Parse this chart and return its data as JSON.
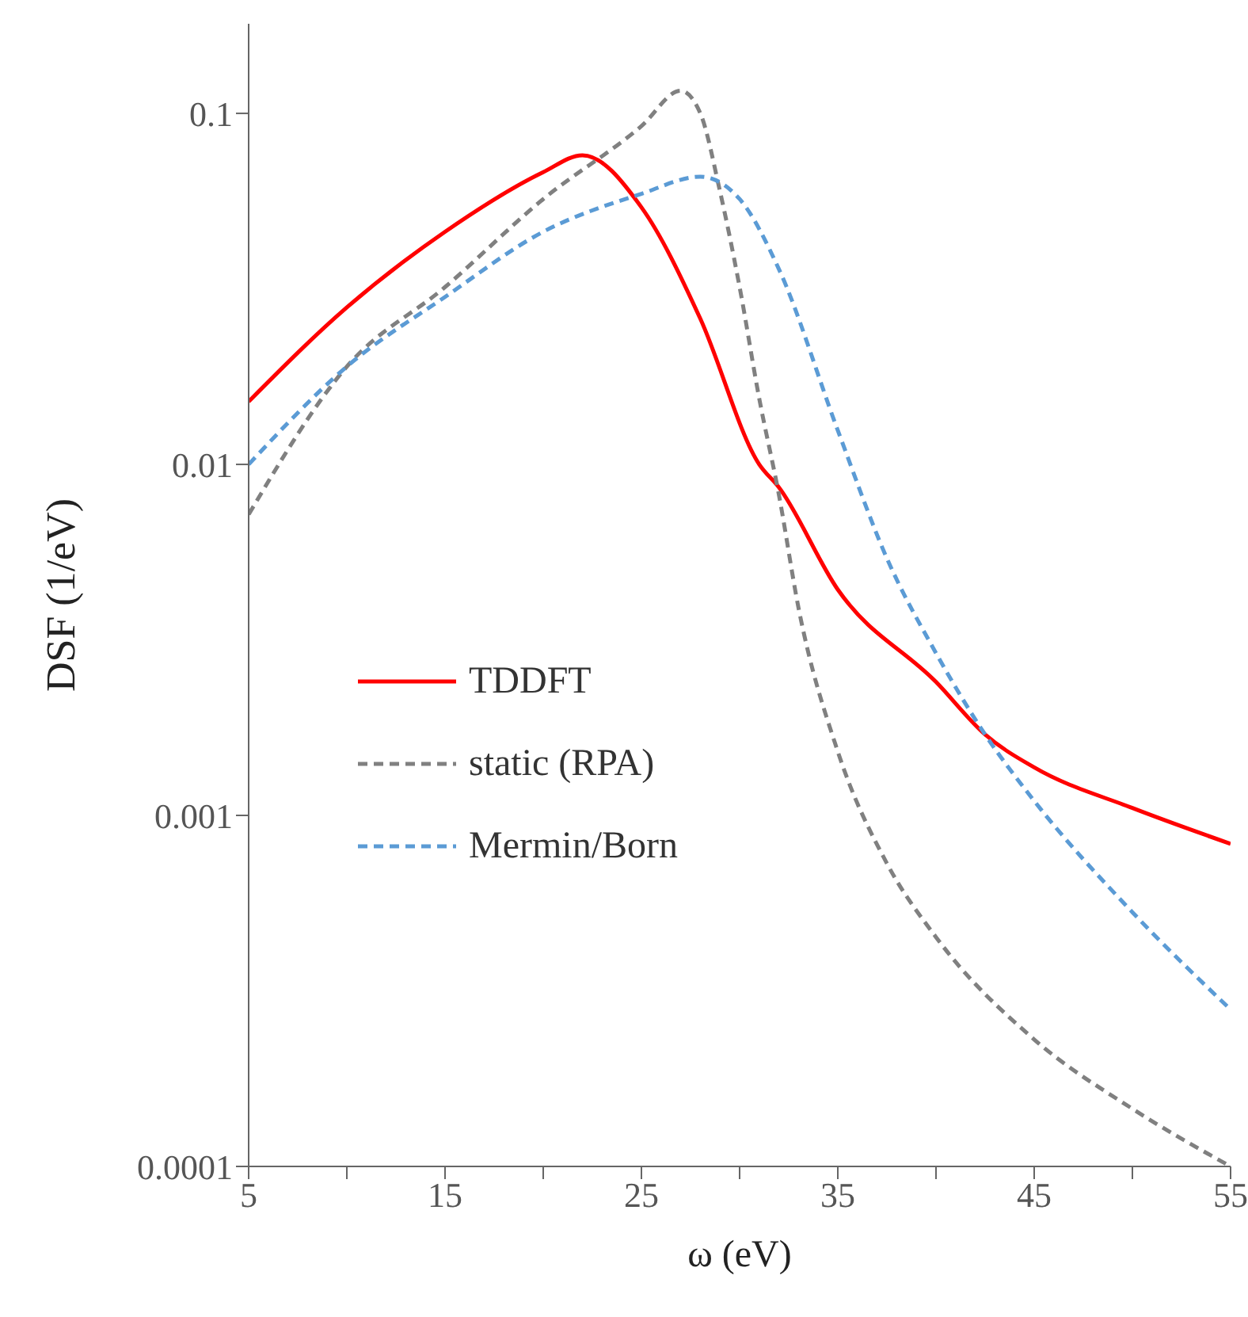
{
  "chart_data": {
    "type": "line",
    "xlabel": "ω (eV)",
    "ylabel": "DSF (1/eV)",
    "log": "y",
    "grid": false,
    "legend": "left",
    "xlim": [
      5,
      55
    ],
    "ylim": [
      0.0001,
      0.18
    ],
    "xticks": [
      5,
      {
        "value": 10,
        "label": null
      },
      15,
      {
        "value": 20,
        "label": null
      },
      25,
      {
        "value": 30,
        "label": null
      },
      35,
      {
        "value": 40,
        "label": null
      },
      45,
      {
        "value": 50,
        "label": null
      },
      55
    ],
    "yticks": [
      0.0001,
      0.001,
      0.01,
      0.1
    ],
    "series": [
      {
        "name": "TDDFT",
        "color": "#ff0000",
        "line_style": "solid",
        "x": [
          5,
          10,
          15,
          20,
          22,
          25,
          28,
          31,
          32,
          35,
          40,
          42.5,
          45,
          50,
          55
        ],
        "values": [
          0.0151,
          0.028,
          0.046,
          0.068,
          0.076,
          0.054,
          0.026,
          0.01,
          0.0086,
          0.0044,
          0.0024,
          0.0017,
          0.00137,
          0.00105,
          0.00083
        ]
      },
      {
        "name": "static (RPA)",
        "color": "#808080",
        "line_style": "dashed",
        "x": [
          5,
          10,
          15,
          20,
          25,
          27,
          28,
          29,
          30,
          31,
          32,
          33,
          35,
          37.5,
          40,
          45,
          50,
          55
        ],
        "values": [
          0.0072,
          0.019,
          0.032,
          0.057,
          0.092,
          0.116,
          0.1,
          0.06,
          0.032,
          0.0154,
          0.0082,
          0.0039,
          0.00152,
          0.00073,
          0.00045,
          0.00023,
          0.000146,
          0.0001
        ]
      },
      {
        "name": "Mermin/Born",
        "color": "#5b9bd5",
        "line_style": "dashed",
        "x": [
          5,
          10,
          15,
          20,
          25,
          28,
          30,
          32,
          35,
          37.5,
          40,
          42.5,
          45,
          50,
          55
        ],
        "values": [
          0.01,
          0.019,
          0.03,
          0.046,
          0.059,
          0.066,
          0.057,
          0.036,
          0.0125,
          0.0054,
          0.0029,
          0.0017,
          0.0011,
          0.00053,
          0.00028
        ]
      }
    ]
  }
}
